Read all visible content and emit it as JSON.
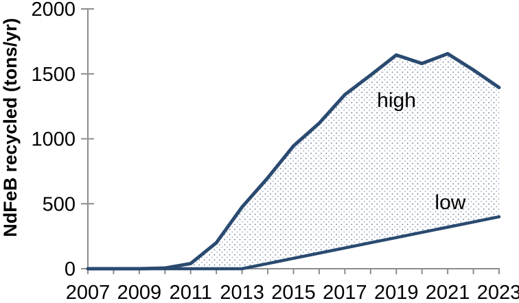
{
  "chart_data": {
    "type": "area",
    "title": "",
    "xlabel": "",
    "ylabel": "NdFeB recycled (tons/yr)",
    "x": [
      2007,
      2008,
      2009,
      2010,
      2011,
      2012,
      2013,
      2014,
      2015,
      2016,
      2017,
      2018,
      2019,
      2020,
      2021,
      2022,
      2023
    ],
    "series": [
      {
        "name": "high",
        "values": [
          0,
          0,
          0,
          5,
          40,
          200,
          475,
          700,
          945,
          1120,
          1340,
          1490,
          1645,
          1580,
          1655,
          1530,
          1395
        ]
      },
      {
        "name": "low",
        "values": [
          0,
          0,
          0,
          0,
          0,
          0,
          0,
          40,
          80,
          120,
          160,
          200,
          240,
          280,
          320,
          360,
          400
        ]
      }
    ],
    "band_between_series": [
      "high",
      "low"
    ],
    "band_fill_style": "dotted-pattern",
    "xlim": [
      2007,
      2023
    ],
    "ylim": [
      0,
      2000
    ],
    "yticks": [
      0,
      500,
      1000,
      1500,
      2000
    ],
    "ytick_labels": [
      "0",
      "500",
      "1000",
      "1500",
      "2000"
    ],
    "xtick_years_minor": [
      2007,
      2008,
      2009,
      2010,
      2011,
      2012,
      2013,
      2014,
      2015,
      2016,
      2017,
      2018,
      2019,
      2020,
      2021,
      2022,
      2023
    ],
    "xtick_label_years": [
      2007,
      2009,
      2011,
      2013,
      2015,
      2017,
      2019,
      2021,
      2023
    ],
    "xtick_labels": [
      "2007",
      "2009",
      "2011",
      "2013",
      "2015",
      "2017",
      "2019",
      "2021",
      "2023"
    ],
    "grid": "off",
    "legend": "none",
    "annotations": [
      {
        "text": "high",
        "x": 2018.25,
        "y": 1245
      },
      {
        "text": "low",
        "x": 2020.5,
        "y": 460
      }
    ]
  },
  "colors": {
    "line": "#2a4a70",
    "dot_dark": "#53688b",
    "dot_light": "#8195af",
    "axis": "#8c8c8c",
    "text": "#000000",
    "background": "#ffffff"
  }
}
